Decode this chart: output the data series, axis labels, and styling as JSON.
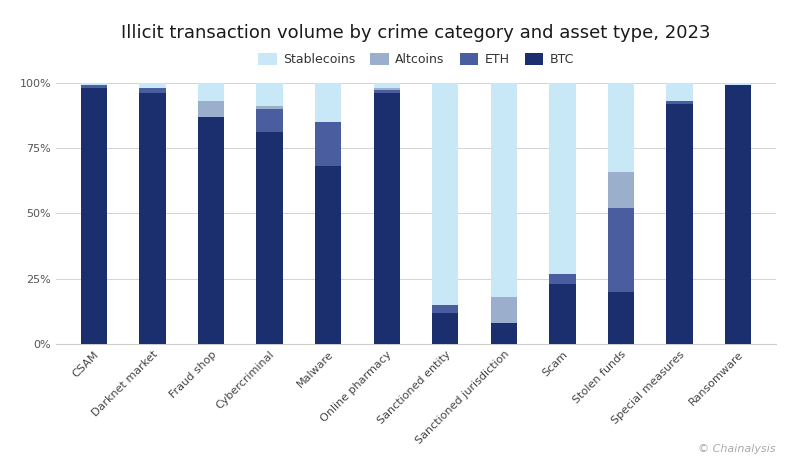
{
  "title": "Illicit transaction volume by crime category and asset type, 2023",
  "categories": [
    "CSAM",
    "Darknet market",
    "Fraud shop",
    "Cybercriminal",
    "Malware",
    "Online pharmacy",
    "Sanctioned entity",
    "Sanctioned jurisdiction",
    "Scam",
    "Stolen funds",
    "Special measures",
    "Ransomware"
  ],
  "series": {
    "BTC": [
      98,
      96,
      87,
      81,
      68,
      96,
      12,
      8,
      23,
      20,
      92,
      99
    ],
    "ETH": [
      1,
      2,
      0,
      9,
      17,
      1,
      3,
      0,
      4,
      32,
      1,
      0
    ],
    "Altcoins": [
      0,
      0,
      6,
      1,
      0,
      1,
      0,
      10,
      0,
      14,
      0,
      0
    ],
    "Stablecoins": [
      1,
      2,
      7,
      9,
      15,
      2,
      85,
      82,
      73,
      34,
      7,
      1
    ]
  },
  "colors": {
    "BTC": "#1b2f6e",
    "ETH": "#4a5d9e",
    "Altcoins": "#9baecb",
    "Stablecoins": "#c8e8f8"
  },
  "legend_order": [
    "Stablecoins",
    "Altcoins",
    "ETH",
    "BTC"
  ],
  "ylim": [
    0,
    100
  ],
  "yticks": [
    0,
    25,
    50,
    75,
    100
  ],
  "ytick_labels": [
    "0%",
    "25%",
    "50%",
    "75%",
    "100%"
  ],
  "background_color": "#ffffff",
  "grid_color": "#cccccc",
  "watermark": "© Chainalysis",
  "title_fontsize": 13,
  "tick_fontsize": 8,
  "legend_fontsize": 9,
  "bar_width": 0.45
}
